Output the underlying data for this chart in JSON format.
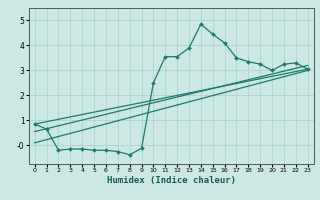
{
  "title": "",
  "xlabel": "Humidex (Indice chaleur)",
  "ylabel": "",
  "bg_color": "#cce8e4",
  "grid_color": "#aed4d0",
  "line_color": "#1a7a6e",
  "xlim": [
    -0.5,
    23.5
  ],
  "ylim": [
    -0.75,
    5.5
  ],
  "xticks": [
    0,
    1,
    2,
    3,
    4,
    5,
    6,
    7,
    8,
    9,
    10,
    11,
    12,
    13,
    14,
    15,
    16,
    17,
    18,
    19,
    20,
    21,
    22,
    23
  ],
  "yticks": [
    0,
    1,
    2,
    3,
    4,
    5
  ],
  "ytick_labels": [
    "-0",
    "1",
    "2",
    "3",
    "4",
    "5"
  ],
  "jagged_x": [
    0,
    1,
    2,
    3,
    4,
    5,
    6,
    7,
    8,
    9,
    10,
    11,
    12,
    13,
    14,
    15,
    16,
    17,
    18,
    19,
    20,
    21,
    22,
    23
  ],
  "jagged_y": [
    0.85,
    0.65,
    -0.2,
    -0.15,
    -0.15,
    -0.2,
    -0.2,
    -0.25,
    -0.38,
    -0.12,
    2.5,
    3.55,
    3.55,
    3.9,
    4.85,
    4.45,
    4.1,
    3.5,
    3.35,
    3.25,
    3.0,
    3.25,
    3.3,
    3.05
  ],
  "line1_x": [
    0,
    23
  ],
  "line1_y": [
    0.85,
    3.05
  ],
  "line2_x": [
    0,
    23
  ],
  "line2_y": [
    0.55,
    3.2
  ],
  "line3_x": [
    0,
    23
  ],
  "line3_y": [
    0.1,
    3.0
  ]
}
